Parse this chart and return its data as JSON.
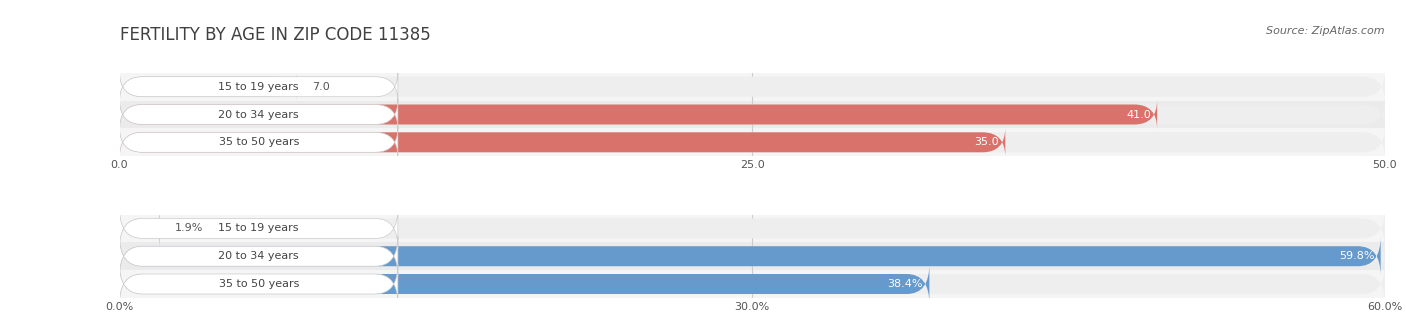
{
  "title": "FERTILITY BY AGE IN ZIP CODE 11385",
  "source": "Source: ZipAtlas.com",
  "top_section": {
    "bars": [
      {
        "label": "15 to 19 years",
        "value": 7.0,
        "value_label": "7.0"
      },
      {
        "label": "20 to 34 years",
        "value": 41.0,
        "value_label": "41.0"
      },
      {
        "label": "35 to 50 years",
        "value": 35.0,
        "value_label": "35.0"
      }
    ],
    "xlim": [
      0,
      50
    ],
    "xticks": [
      0.0,
      25.0,
      50.0
    ],
    "xtick_labels": [
      "0.0",
      "25.0",
      "50.0"
    ],
    "bar_color_main": "#d9726b",
    "bar_color_light": "#e8a8a4",
    "bar_bg_color": "#eeeeee",
    "row_bg_even": "#f5f5f5",
    "row_bg_odd": "#ebebeb"
  },
  "bottom_section": {
    "bars": [
      {
        "label": "15 to 19 years",
        "value": 1.9,
        "value_label": "1.9%"
      },
      {
        "label": "20 to 34 years",
        "value": 59.8,
        "value_label": "59.8%"
      },
      {
        "label": "35 to 50 years",
        "value": 38.4,
        "value_label": "38.4%"
      }
    ],
    "xlim": [
      0,
      60
    ],
    "xticks": [
      0.0,
      30.0,
      60.0
    ],
    "xtick_labels": [
      "0.0%",
      "30.0%",
      "60.0%"
    ],
    "bar_color_main": "#6699cc",
    "bar_color_light": "#99bbdd",
    "bar_bg_color": "#eeeeee",
    "row_bg_even": "#f5f5f5",
    "row_bg_odd": "#ebebeb"
  },
  "title_fontsize": 12,
  "source_fontsize": 8,
  "label_fontsize": 8,
  "value_fontsize": 8,
  "axis_fontsize": 8
}
